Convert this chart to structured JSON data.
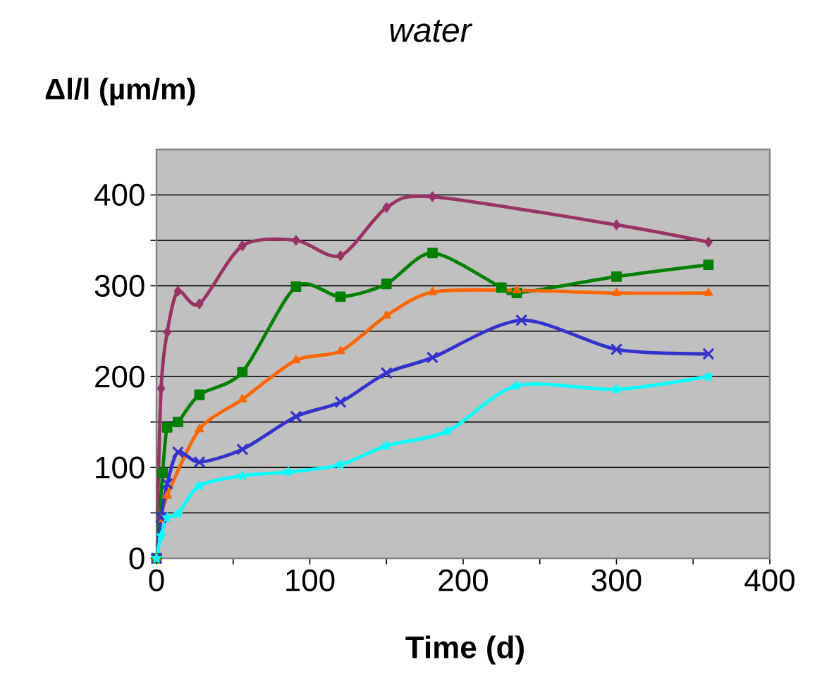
{
  "chart_data": {
    "type": "line",
    "title": "water",
    "ylabel": "Δl/l (µm/m)",
    "xlabel": "Time (d)",
    "xlim": [
      0,
      400
    ],
    "xticks": [
      0,
      {
        "value": 50,
        "label": null
      },
      100,
      {
        "value": 150,
        "label": null
      },
      200,
      {
        "value": 250,
        "label": null
      },
      300,
      {
        "value": 350,
        "label": null
      },
      400
    ],
    "ylim": [
      0,
      450
    ],
    "yticks": [
      0,
      {
        "value": 50,
        "label": null
      },
      100,
      {
        "value": 150,
        "label": null
      },
      200,
      {
        "value": 250,
        "label": null
      },
      300,
      {
        "value": 350,
        "label": null
      },
      400
    ],
    "grid": "y",
    "line_style": "solid",
    "series": [
      {
        "color": "#993366",
        "marker": "diamond",
        "x": [
          0,
          3,
          7,
          14,
          28,
          56,
          91,
          120,
          150,
          180,
          300,
          360
        ],
        "values": [
          0,
          187,
          249,
          294,
          280,
          344,
          350,
          333,
          386,
          398,
          367,
          348
        ]
      },
      {
        "color": "#008000",
        "marker": "square",
        "x": [
          0,
          4,
          7,
          14,
          28,
          56,
          91,
          120,
          150,
          180,
          225,
          235,
          300,
          360
        ],
        "values": [
          0,
          94,
          144,
          150,
          180,
          205,
          299,
          288,
          302,
          336,
          298,
          292,
          310,
          323
        ]
      },
      {
        "color": "#ff6600",
        "marker": "triangle",
        "x": [
          0,
          3,
          7,
          28,
          56,
          91,
          120,
          150,
          180,
          235,
          300,
          360
        ],
        "values": [
          0,
          43,
          69,
          142,
          175,
          218,
          228,
          267,
          293,
          295,
          292,
          292
        ]
      },
      {
        "color": "#3333cc",
        "marker": "cross",
        "x": [
          0,
          3,
          7,
          14,
          28,
          56,
          91,
          120,
          150,
          180,
          238,
          300,
          360
        ],
        "values": [
          0,
          45,
          82,
          117,
          106,
          120,
          156,
          172,
          204,
          221,
          262,
          230,
          225
        ]
      },
      {
        "color": "#00ffff",
        "marker": "star",
        "x": [
          0,
          3,
          7,
          14,
          28,
          56,
          86,
          120,
          150,
          190,
          235,
          300,
          360
        ],
        "values": [
          0,
          25,
          45,
          49,
          80,
          91,
          95,
          103,
          124,
          140,
          190,
          186,
          200
        ]
      }
    ]
  }
}
